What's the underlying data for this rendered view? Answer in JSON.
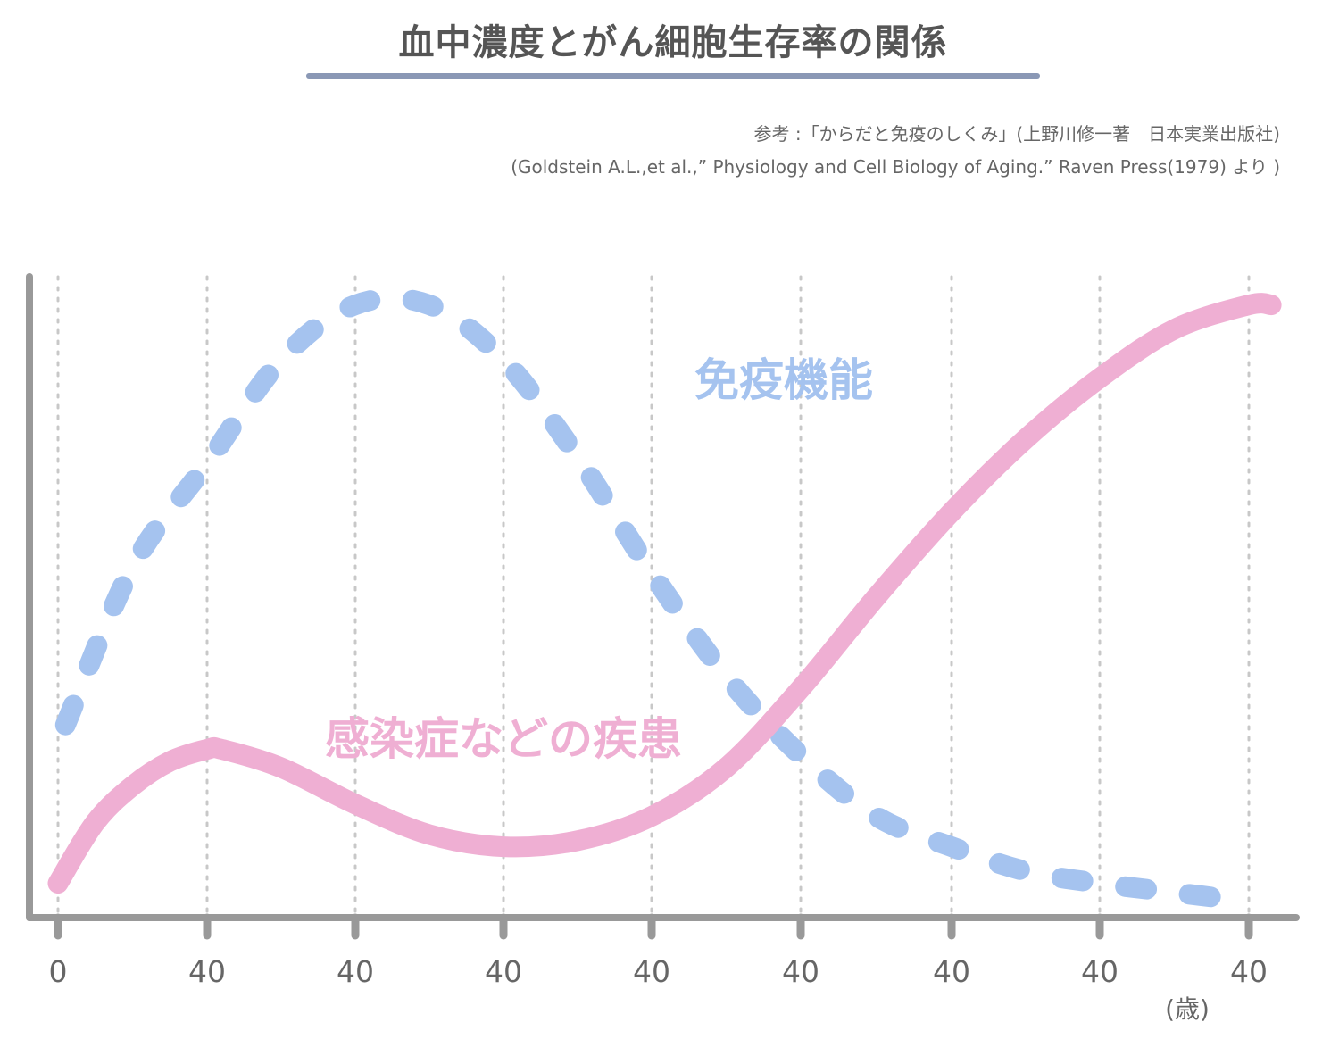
{
  "header": {
    "title": "血中濃度とがん細胞生存率の関係",
    "source_line1": "参考 :「からだと免疫のしくみ」(上野川修一著　日本実業出版社)",
    "source_line2": "(Goldstein A.L.,et al.,” Physiology and Cell Biology of Aging.” Raven Press(1979) より )"
  },
  "colors": {
    "title_rule": "#8a98b5",
    "axis": "#999999",
    "grid": "#c8c8c8",
    "immune": "#a5c3ef",
    "disease": "#efafd3",
    "tick_text": "#666666"
  },
  "chart_data": {
    "type": "line",
    "title": "血中濃度とがん細胞生存率の関係",
    "xlabel": "",
    "ylabel": "",
    "x_unit": "(歳)",
    "categories": [
      "0",
      "40",
      "40",
      "40",
      "40",
      "40",
      "40",
      "40",
      "40"
    ],
    "x_range": [
      0,
      8.15
    ],
    "ylim": [
      0,
      100
    ],
    "grid": "vertical dotted",
    "series": [
      {
        "name": "免疫機能",
        "style": "dashed",
        "color": "#a5c3ef",
        "x": [
          0.05,
          0.5,
          1.0,
          1.5,
          2.0,
          2.5,
          3.0,
          3.5,
          4.0,
          4.5,
          5.0,
          5.5,
          6.0,
          6.5,
          7.0,
          7.5,
          8.0
        ],
        "y": [
          29,
          55,
          72,
          89,
          98,
          98,
          89,
          73,
          54,
          37,
          24,
          14,
          9,
          5,
          3,
          1.5,
          0
        ]
      },
      {
        "name": "感染症などの疾患",
        "style": "solid",
        "color": "#efafd3",
        "x": [
          0,
          0.25,
          0.5,
          0.75,
          1.0,
          1.1,
          1.5,
          2.0,
          2.5,
          3.0,
          3.5,
          4.0,
          4.5,
          5.0,
          5.5,
          6.0,
          6.5,
          7.0,
          7.5,
          8.0,
          8.15
        ],
        "y": [
          3,
          13,
          19,
          23,
          25,
          25,
          22,
          16,
          11,
          9,
          10,
          14,
          22,
          35,
          50,
          64,
          76,
          86,
          94,
          98,
          98
        ]
      }
    ],
    "annotations": [
      {
        "text": "免疫機能",
        "series": "免疫機能"
      },
      {
        "text": "感染症などの疾患",
        "series": "感染症などの疾患"
      }
    ]
  }
}
